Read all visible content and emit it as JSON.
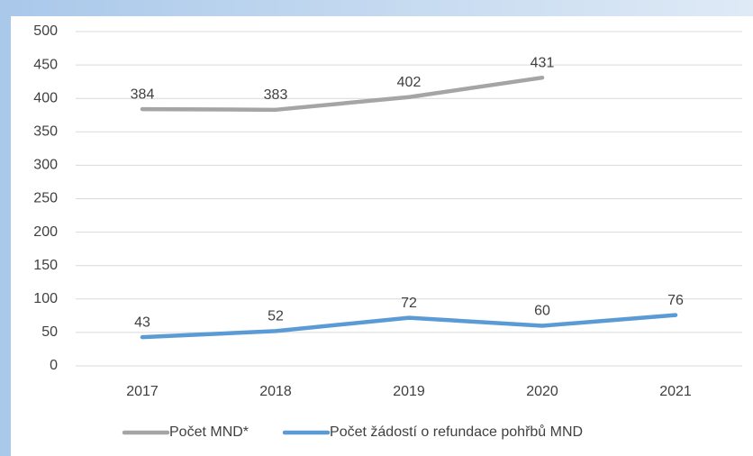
{
  "chart_data": {
    "type": "line",
    "categories": [
      "2017",
      "2018",
      "2019",
      "2020",
      "2021"
    ],
    "series": [
      {
        "name": "Počet MND*",
        "color": "#a5a5a5",
        "values": [
          384,
          383,
          402,
          431,
          null
        ]
      },
      {
        "name": "Počet žádostí o refundace pohřbů MND",
        "color": "#5b9bd5",
        "values": [
          43,
          52,
          72,
          60,
          76
        ]
      }
    ],
    "ylim": [
      0,
      500
    ],
    "yticks": [
      0,
      50,
      100,
      150,
      200,
      250,
      300,
      350,
      400,
      450,
      500
    ],
    "grid": true,
    "legend": "bottom"
  }
}
